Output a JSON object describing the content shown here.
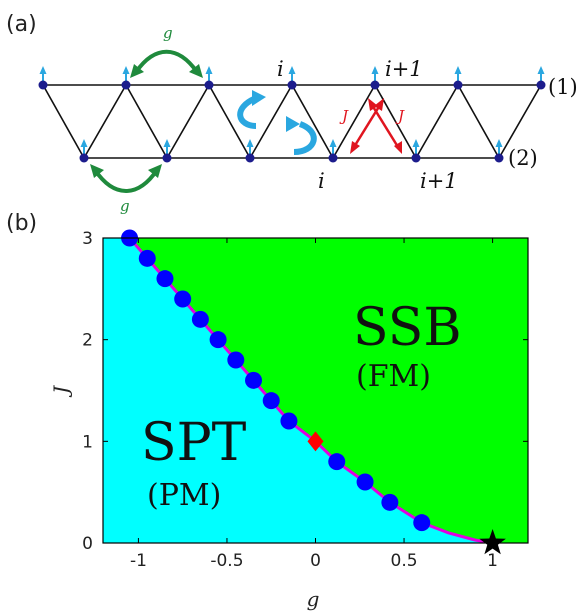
{
  "panel_a": {
    "label": "(a)",
    "chain_labels": [
      "(1)",
      "(2)"
    ],
    "site_labels": {
      "top_i": "i",
      "top_i1": "i+1",
      "bottom_i": "i",
      "bottom_i1": "i+1"
    },
    "coupling_labels": {
      "g_top": "g",
      "g_bottom": "g",
      "J_left": "J",
      "J_right": "J"
    },
    "colors": {
      "lattice": "#111111",
      "site": "#1c1c8c",
      "spin": "#2aa7e0",
      "g_arrow": "#1f8a3c",
      "J_arrow": "#e0151f",
      "swirl": "#2aa7e0"
    }
  },
  "panel_b": {
    "label": "(b)",
    "colors": {
      "spt_region": "#00ffff",
      "ssb_region": "#00ff00",
      "boundary": "#e100e1",
      "points": "#0000ff",
      "diamond": "#ff0000",
      "star": "#000000"
    }
  },
  "chart_data": {
    "type": "scatter",
    "title": "",
    "xlabel": "g",
    "ylabel": "J",
    "xlim": [
      -1.2,
      1.2
    ],
    "ylim": [
      0,
      3
    ],
    "xticks": [
      "-1",
      "-0.5",
      "0",
      "0.5",
      "1"
    ],
    "yticks": [
      "0",
      "1",
      "2",
      "3"
    ],
    "xtick_values": [
      -1,
      -0.5,
      0,
      0.5,
      1
    ],
    "ytick_values": [
      0,
      1,
      2,
      3
    ],
    "regions": [
      {
        "name": "SPT",
        "sublabel": "(PM)",
        "side": "lower-left",
        "color": "#00ffff"
      },
      {
        "name": "SSB",
        "sublabel": "(FM)",
        "side": "upper-right",
        "color": "#00ff00"
      }
    ],
    "series": [
      {
        "x": [
          -1.05,
          -0.95,
          -0.85,
          -0.75,
          -0.65,
          -0.55,
          -0.45,
          -0.35,
          -0.25,
          -0.15,
          0.12,
          0.28,
          0.42,
          0.6
        ],
        "y": [
          3.0,
          2.8,
          2.6,
          2.4,
          2.2,
          2.0,
          1.8,
          1.6,
          1.4,
          1.2,
          0.8,
          0.6,
          0.4,
          0.2
        ]
      }
    ],
    "special_points": [
      {
        "marker": "diamond",
        "x": 0.0,
        "y": 1.0
      },
      {
        "marker": "star",
        "x": 1.0,
        "y": 0.0
      }
    ],
    "boundary_curve": {
      "x": [
        -1.05,
        -0.75,
        -0.45,
        -0.15,
        0.0,
        0.12,
        0.28,
        0.42,
        0.6,
        0.75,
        0.9,
        1.0
      ],
      "y": [
        3.0,
        2.4,
        1.8,
        1.2,
        1.0,
        0.8,
        0.6,
        0.4,
        0.2,
        0.1,
        0.03,
        0.0
      ]
    },
    "grid": false
  }
}
